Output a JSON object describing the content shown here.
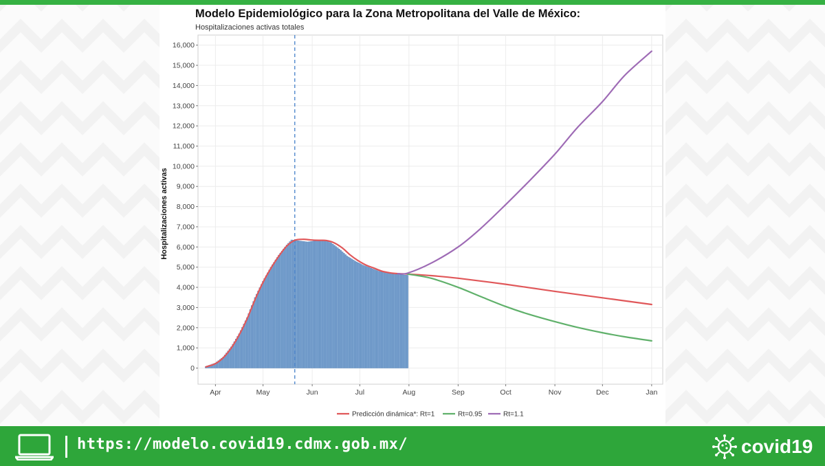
{
  "colors": {
    "brand_green": "#36b143",
    "footer_green": "#2ea63a",
    "bars": "#7ba3cf",
    "vline": "#5b8fcf",
    "series_rt1": "#e05759",
    "series_rt095": "#5fb06a",
    "series_rt11": "#9e6bb5"
  },
  "footer": {
    "url": "https://modelo.covid19.cdmx.gob.mx/",
    "brand": "covid19",
    "icons": [
      "laptop-icon",
      "virus-icon"
    ]
  },
  "chart_data": {
    "type": "line",
    "title": "Modelo Epidemiológico para la Zona Metropolitana del Valle de México:",
    "subtitle": "Hospitalizaciones activas totales",
    "xlabel": "",
    "ylabel": "Hospitalizaciones activas",
    "x_ticks": [
      "Apr",
      "May",
      "Jun",
      "Jul",
      "Aug",
      "Sep",
      "Oct",
      "Nov",
      "Dec",
      "Jan"
    ],
    "x_range": [
      "2020-03-21",
      "2021-01-08"
    ],
    "y_ticks": [
      "0",
      "1,000",
      "2,000",
      "3,000",
      "4,000",
      "5,000",
      "6,000",
      "7,000",
      "8,000",
      "9,000",
      "10,000",
      "11,000",
      "12,000",
      "13,000",
      "14,000",
      "15,000",
      "16,000"
    ],
    "ylim": [
      -800,
      16500
    ],
    "grid": true,
    "legend_position": "bottom",
    "vline": "2020-05-21",
    "observed_bars": {
      "x": [
        "2020-03-26",
        "2020-04-01",
        "2020-04-06",
        "2020-04-11",
        "2020-04-16",
        "2020-04-21",
        "2020-04-26",
        "2020-05-01",
        "2020-05-06",
        "2020-05-11",
        "2020-05-16",
        "2020-05-19",
        "2020-05-24",
        "2020-05-29",
        "2020-06-03",
        "2020-06-08",
        "2020-06-13",
        "2020-06-18",
        "2020-06-23",
        "2020-06-28",
        "2020-07-03",
        "2020-07-08",
        "2020-07-13",
        "2020-07-18",
        "2020-07-23",
        "2020-07-31"
      ],
      "values": [
        80,
        250,
        550,
        1050,
        1700,
        2500,
        3500,
        4300,
        5000,
        5600,
        6100,
        6350,
        6300,
        6250,
        6300,
        6350,
        6200,
        5900,
        5550,
        5300,
        5100,
        4950,
        4800,
        4700,
        4650,
        4600
      ]
    },
    "series": [
      {
        "name": "Predicción dinámica*: Rt=1",
        "x": [
          "2020-03-26",
          "2020-04-01",
          "2020-04-06",
          "2020-04-11",
          "2020-04-16",
          "2020-04-21",
          "2020-04-26",
          "2020-05-01",
          "2020-05-06",
          "2020-05-11",
          "2020-05-16",
          "2020-05-21",
          "2020-05-26",
          "2020-05-31",
          "2020-06-05",
          "2020-06-10",
          "2020-06-15",
          "2020-06-20",
          "2020-06-25",
          "2020-06-30",
          "2020-07-05",
          "2020-07-10",
          "2020-07-15",
          "2020-07-20",
          "2020-07-25",
          "2020-07-31",
          "2020-08-15",
          "2020-09-01",
          "2020-10-01",
          "2020-11-01",
          "2020-12-01",
          "2021-01-01"
        ],
        "values": [
          60,
          220,
          520,
          1000,
          1650,
          2450,
          3400,
          4250,
          4950,
          5550,
          6050,
          6330,
          6380,
          6350,
          6330,
          6320,
          6200,
          5950,
          5600,
          5320,
          5100,
          4950,
          4800,
          4720,
          4680,
          4660,
          4580,
          4450,
          4150,
          3800,
          3480,
          3150
        ]
      },
      {
        "name": "Rt=0.95",
        "x": [
          "2020-07-31",
          "2020-08-15",
          "2020-09-01",
          "2020-09-15",
          "2020-10-01",
          "2020-10-15",
          "2020-11-01",
          "2020-11-15",
          "2020-12-01",
          "2020-12-15",
          "2021-01-01"
        ],
        "values": [
          4660,
          4450,
          4000,
          3550,
          3050,
          2680,
          2300,
          2020,
          1750,
          1550,
          1350
        ]
      },
      {
        "name": "Rt=1.1",
        "x": [
          "2020-07-25",
          "2020-07-31",
          "2020-08-15",
          "2020-09-01",
          "2020-09-15",
          "2020-10-01",
          "2020-10-15",
          "2020-11-01",
          "2020-11-15",
          "2020-12-01",
          "2020-12-15",
          "2021-01-01"
        ],
        "values": [
          4680,
          4700,
          5200,
          6000,
          6900,
          8100,
          9200,
          10600,
          11900,
          13200,
          14500,
          15700
        ]
      }
    ]
  }
}
